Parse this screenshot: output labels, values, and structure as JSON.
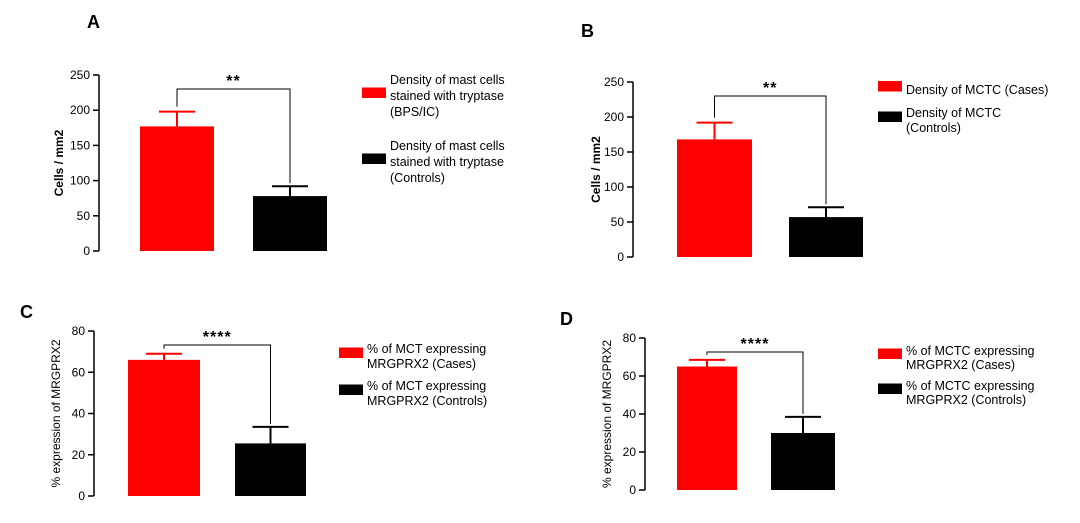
{
  "colors": {
    "cases": "#ff0000",
    "controls": "#000000",
    "axis": "#000000"
  },
  "chart_data": [
    {
      "panel": "A",
      "type": "bar",
      "ylabel": "Cells / mm2",
      "ylim": [
        0,
        250
      ],
      "yticks": [
        0,
        50,
        100,
        150,
        200,
        250
      ],
      "significance": "**",
      "categories": [
        "Density of mast cells stained with tryptase (BPS/IC)",
        "Density of mast cells stained with tryptase (Controls)"
      ],
      "values": [
        177,
        78
      ],
      "errors": [
        21,
        14
      ],
      "bar_colors": [
        "#ff0000",
        "#000000"
      ],
      "legend": [
        {
          "lines": [
            "Density of mast cells",
            "stained with tryptase",
            "(BPS/IC)"
          ],
          "color": "#ff0000"
        },
        {
          "lines": [
            "Density of mast cells",
            "stained with tryptase",
            "(Controls)"
          ],
          "color": "#000000"
        }
      ]
    },
    {
      "panel": "B",
      "type": "bar",
      "ylabel": "Cells / mm2",
      "ylim": [
        0,
        250
      ],
      "yticks": [
        0,
        50,
        100,
        150,
        200,
        250
      ],
      "significance": "**",
      "categories": [
        "Density of MCTC (Cases)",
        "Density of MCTC (Controls)"
      ],
      "values": [
        168,
        57
      ],
      "errors": [
        24,
        14
      ],
      "bar_colors": [
        "#ff0000",
        "#000000"
      ],
      "legend": [
        {
          "lines": [
            "Density of MCTC (Cases)"
          ],
          "color": "#ff0000"
        },
        {
          "lines": [
            "Density of MCTC",
            "(Controls)"
          ],
          "color": "#000000"
        }
      ]
    },
    {
      "panel": "C",
      "type": "bar",
      "ylabel": "% expression of MRGPRX2",
      "ylim": [
        0,
        80
      ],
      "yticks": [
        0,
        20,
        40,
        60,
        80
      ],
      "significance": "****",
      "categories": [
        "% of MCT expressing MRGPRX2 (Cases)",
        "% of MCT expressing MRGPRX2 (Controls)"
      ],
      "values": [
        66,
        25.5
      ],
      "errors": [
        3,
        8
      ],
      "bar_colors": [
        "#ff0000",
        "#000000"
      ],
      "legend": [
        {
          "lines": [
            "% of MCT expressing",
            "MRGPRX2 (Cases)"
          ],
          "color": "#ff0000"
        },
        {
          "lines": [
            "% of MCT expressing",
            "MRGPRX2 (Controls)"
          ],
          "color": "#000000"
        }
      ]
    },
    {
      "panel": "D",
      "type": "bar",
      "ylabel": "% expression of MRGPRX2",
      "ylim": [
        0,
        80
      ],
      "yticks": [
        0,
        20,
        40,
        60,
        80
      ],
      "significance": "****",
      "categories": [
        "% of MCTC expressing MRGPRX2 (Cases)",
        "% of MCTC expressing MRGPRX2 (Controls)"
      ],
      "values": [
        65,
        30
      ],
      "errors": [
        3.5,
        8.5
      ],
      "bar_colors": [
        "#ff0000",
        "#000000"
      ],
      "legend": [
        {
          "lines": [
            "% of MCTC expressing",
            "MRGPRX2 (Cases)"
          ],
          "color": "#ff0000"
        },
        {
          "lines": [
            "% of MCTC expressing",
            "MRGPRX2 (Controls)"
          ],
          "color": "#000000"
        }
      ]
    }
  ]
}
